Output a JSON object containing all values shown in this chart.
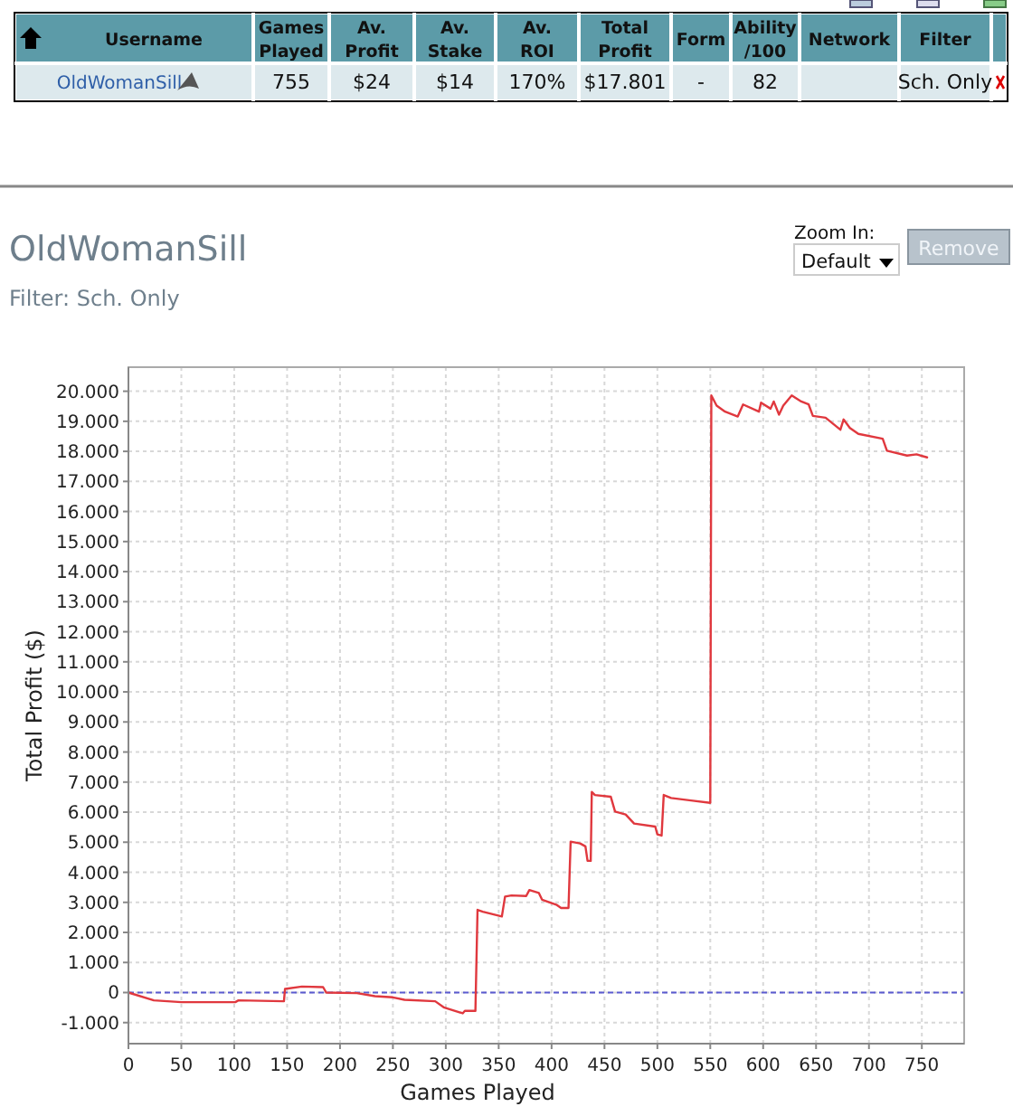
{
  "chart_data": [
    {
      "type": "other",
      "categories": [
        "Username",
        "Games Played",
        "Av. Profit",
        "Av. Stake",
        "Av. ROI",
        "Total Profit",
        "Form",
        "Ability /100",
        "Network",
        "Filter"
      ],
      "cell_labels": [
        [
          "OldWomanSill",
          "755",
          "$24",
          "$14",
          "170%",
          "$17.801",
          "-",
          "82",
          null,
          "Sch. Only"
        ]
      ]
    },
    {
      "type": "line",
      "title": "OldWomanSill",
      "subtitle": "Filter: Sch. Only",
      "xlabel": "Games Played",
      "ylabel": "Total Profit ($)",
      "annotations": [
        "Zoom In:",
        "Default",
        "Remove"
      ],
      "x": [
        0,
        24,
        50,
        101,
        104,
        147,
        148,
        164,
        184,
        187,
        216,
        233,
        250,
        261,
        290,
        298,
        316,
        318,
        328,
        330,
        335,
        353,
        356,
        362,
        376,
        379,
        388,
        391,
        405,
        409,
        416,
        418,
        427,
        432,
        434,
        437,
        438,
        441,
        456,
        460,
        470,
        478,
        498,
        500,
        504,
        506,
        513,
        550,
        551,
        556,
        564,
        576,
        581,
        596,
        598,
        607,
        610,
        615,
        619,
        627,
        636,
        643,
        647,
        659,
        673,
        676,
        682,
        690,
        713,
        717,
        736,
        745,
        755
      ],
      "series": [
        {
          "color": "#e0383e",
          "values": [
            0,
            -260,
            -320,
            -320,
            -260,
            -290,
            120,
            200,
            180,
            0,
            -20,
            -120,
            -160,
            -240,
            -290,
            -490,
            -690,
            -610,
            -610,
            2750,
            2690,
            2530,
            3190,
            3230,
            3210,
            3410,
            3310,
            3090,
            2910,
            2810,
            2810,
            5020,
            4960,
            4860,
            4380,
            4380,
            6670,
            6570,
            6510,
            6020,
            5920,
            5620,
            5520,
            5260,
            5220,
            6570,
            6470,
            6310,
            19860,
            19520,
            19320,
            19160,
            19560,
            19320,
            19620,
            19420,
            19660,
            19220,
            19520,
            19860,
            19660,
            19560,
            19180,
            19120,
            18720,
            19060,
            18780,
            18580,
            18420,
            18020,
            17860,
            17900,
            17800
          ]
        }
      ],
      "xlim": [
        0,
        790
      ],
      "ylim": [
        -1700,
        20800
      ],
      "xticks": [
        0,
        50,
        100,
        150,
        200,
        250,
        300,
        350,
        400,
        450,
        500,
        550,
        600,
        650,
        700,
        750
      ],
      "yticks": [
        {
          "value": -1000,
          "label": "-1.000"
        },
        0,
        {
          "value": 1000,
          "label": "1.000"
        },
        {
          "value": 2000,
          "label": "2.000"
        },
        {
          "value": 3000,
          "label": "3.000"
        },
        {
          "value": 4000,
          "label": "4.000"
        },
        {
          "value": 5000,
          "label": "5.000"
        },
        {
          "value": 6000,
          "label": "6.000"
        },
        {
          "value": 7000,
          "label": "7.000"
        },
        {
          "value": 8000,
          "label": "8.000"
        },
        {
          "value": 9000,
          "label": "9.000"
        },
        {
          "value": 10000,
          "label": "10.000"
        },
        {
          "value": 11000,
          "label": "11.000"
        },
        {
          "value": 12000,
          "label": "12.000"
        },
        {
          "value": 13000,
          "label": "13.000"
        },
        {
          "value": 14000,
          "label": "14.000"
        },
        {
          "value": 15000,
          "label": "15.000"
        },
        {
          "value": 16000,
          "label": "16.000"
        },
        {
          "value": 17000,
          "label": "17.000"
        },
        {
          "value": 18000,
          "label": "18.000"
        },
        {
          "value": 19000,
          "label": "19.000"
        },
        {
          "value": 20000,
          "label": "20.000"
        }
      ],
      "grid": true,
      "ref_lines": [
        {
          "axis": "y",
          "value": 0,
          "color": "#5a5ad0",
          "line_style": "dashed"
        }
      ]
    }
  ]
}
